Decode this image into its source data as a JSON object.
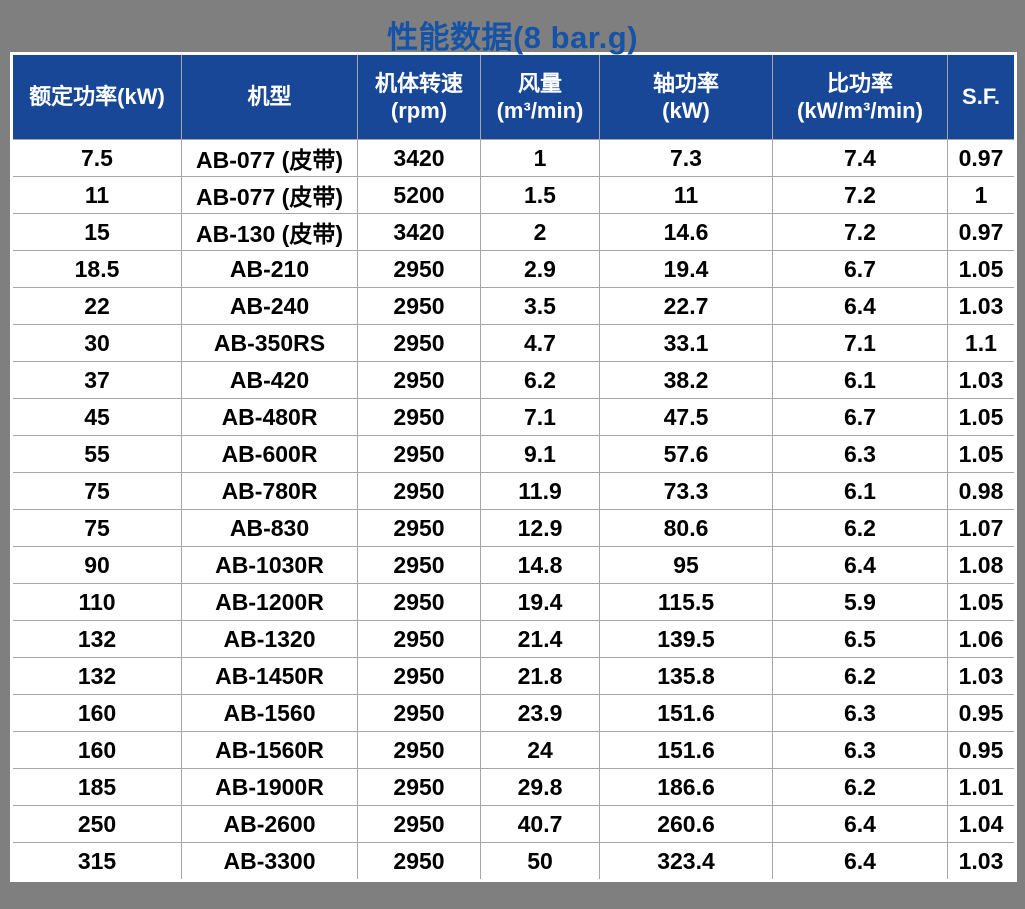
{
  "title": "性能数据(8 bar.g)",
  "colors": {
    "canvas_background": "#7F7F7F",
    "title_text": "#1453A8",
    "header_background": "#174796",
    "header_text": "#FFFFFF",
    "gray_column_background": "#D9D9D9",
    "cream_column_background": "#FBF1D3",
    "white_column_background": "#FFFFFF",
    "gridline": "#A6A6A6",
    "outer_border": "#FFFFFF",
    "body_text": "#000000"
  },
  "chart_data": {
    "type": "table",
    "title": "性能数据(8 bar.g)",
    "columns": [
      {
        "key": "power",
        "line1": "额定功率(kW)",
        "line2": ""
      },
      {
        "key": "model",
        "line1": "机型",
        "line2": ""
      },
      {
        "key": "rpm",
        "line1": "机体转速",
        "line2": "(rpm)"
      },
      {
        "key": "flow",
        "line1": "风量",
        "line2": "(m³/min)"
      },
      {
        "key": "shaft",
        "line1": "轴功率",
        "line2": "(kW)"
      },
      {
        "key": "specific",
        "line1": "比功率",
        "line2": "(kW/m³/min)"
      },
      {
        "key": "sf",
        "line1": "S.F.",
        "line2": ""
      }
    ],
    "rows": [
      [
        "7.5",
        "AB-077 (皮带)",
        "3420",
        "1",
        "7.3",
        "7.4",
        "0.97"
      ],
      [
        "11",
        "AB-077 (皮带)",
        "5200",
        "1.5",
        "11",
        "7.2",
        "1"
      ],
      [
        "15",
        "AB-130 (皮带)",
        "3420",
        "2",
        "14.6",
        "7.2",
        "0.97"
      ],
      [
        "18.5",
        "AB-210",
        "2950",
        "2.9",
        "19.4",
        "6.7",
        "1.05"
      ],
      [
        "22",
        "AB-240",
        "2950",
        "3.5",
        "22.7",
        "6.4",
        "1.03"
      ],
      [
        "30",
        "AB-350RS",
        "2950",
        "4.7",
        "33.1",
        "7.1",
        "1.1"
      ],
      [
        "37",
        "AB-420",
        "2950",
        "6.2",
        "38.2",
        "6.1",
        "1.03"
      ],
      [
        "45",
        "AB-480R",
        "2950",
        "7.1",
        "47.5",
        "6.7",
        "1.05"
      ],
      [
        "55",
        "AB-600R",
        "2950",
        "9.1",
        "57.6",
        "6.3",
        "1.05"
      ],
      [
        "75",
        "AB-780R",
        "2950",
        "11.9",
        "73.3",
        "6.1",
        "0.98"
      ],
      [
        "75",
        "AB-830",
        "2950",
        "12.9",
        "80.6",
        "6.2",
        "1.07"
      ],
      [
        "90",
        "AB-1030R",
        "2950",
        "14.8",
        "95",
        "6.4",
        "1.08"
      ],
      [
        "110",
        "AB-1200R",
        "2950",
        "19.4",
        "115.5",
        "5.9",
        "1.05"
      ],
      [
        "132",
        "AB-1320",
        "2950",
        "21.4",
        "139.5",
        "6.5",
        "1.06"
      ],
      [
        "132",
        "AB-1450R",
        "2950",
        "21.8",
        "135.8",
        "6.2",
        "1.03"
      ],
      [
        "160",
        "AB-1560",
        "2950",
        "23.9",
        "151.6",
        "6.3",
        "0.95"
      ],
      [
        "160",
        "AB-1560R",
        "2950",
        "24",
        "151.6",
        "6.3",
        "0.95"
      ],
      [
        "185",
        "AB-1900R",
        "2950",
        "29.8",
        "186.6",
        "6.2",
        "1.01"
      ],
      [
        "250",
        "AB-2600",
        "2950",
        "40.7",
        "260.6",
        "6.4",
        "1.04"
      ],
      [
        "315",
        "AB-3300",
        "2950",
        "50",
        "323.4",
        "6.4",
        "1.03"
      ]
    ]
  }
}
